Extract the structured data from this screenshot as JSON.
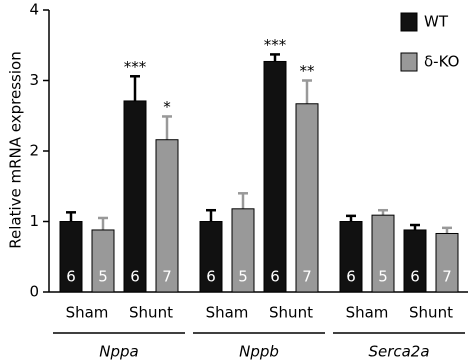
{
  "chart_data": {
    "type": "bar",
    "ylabel": "Relative mRNA expression",
    "categories": [
      "Sham",
      "Shunt",
      "Sham",
      "Shunt",
      "Sham",
      "Shunt"
    ],
    "groups": [
      "Nppa",
      "Nppb",
      "Serca2a"
    ],
    "series": [
      {
        "name": "WT",
        "color": "#111111",
        "values": [
          1.0,
          2.71,
          1.0,
          3.27,
          1.0,
          0.88
        ],
        "errors": [
          0.13,
          0.35,
          0.16,
          0.1,
          0.08,
          0.07
        ],
        "n": [
          6,
          6,
          6,
          6,
          6,
          6
        ],
        "annotations": [
          null,
          "***",
          null,
          "***",
          null,
          null
        ]
      },
      {
        "name": "δ-KO",
        "color": "#999999",
        "values": [
          0.88,
          2.16,
          1.18,
          2.67,
          1.09,
          0.83
        ],
        "errors": [
          0.17,
          0.33,
          0.22,
          0.33,
          0.07,
          0.08
        ],
        "n": [
          5,
          7,
          5,
          7,
          5,
          7
        ],
        "annotations": [
          null,
          "*",
          null,
          "**",
          null,
          null
        ]
      }
    ],
    "ylim": [
      0,
      4
    ],
    "yticks": [
      0,
      1,
      2,
      3,
      4
    ],
    "grid": false,
    "legend": "top-right"
  }
}
